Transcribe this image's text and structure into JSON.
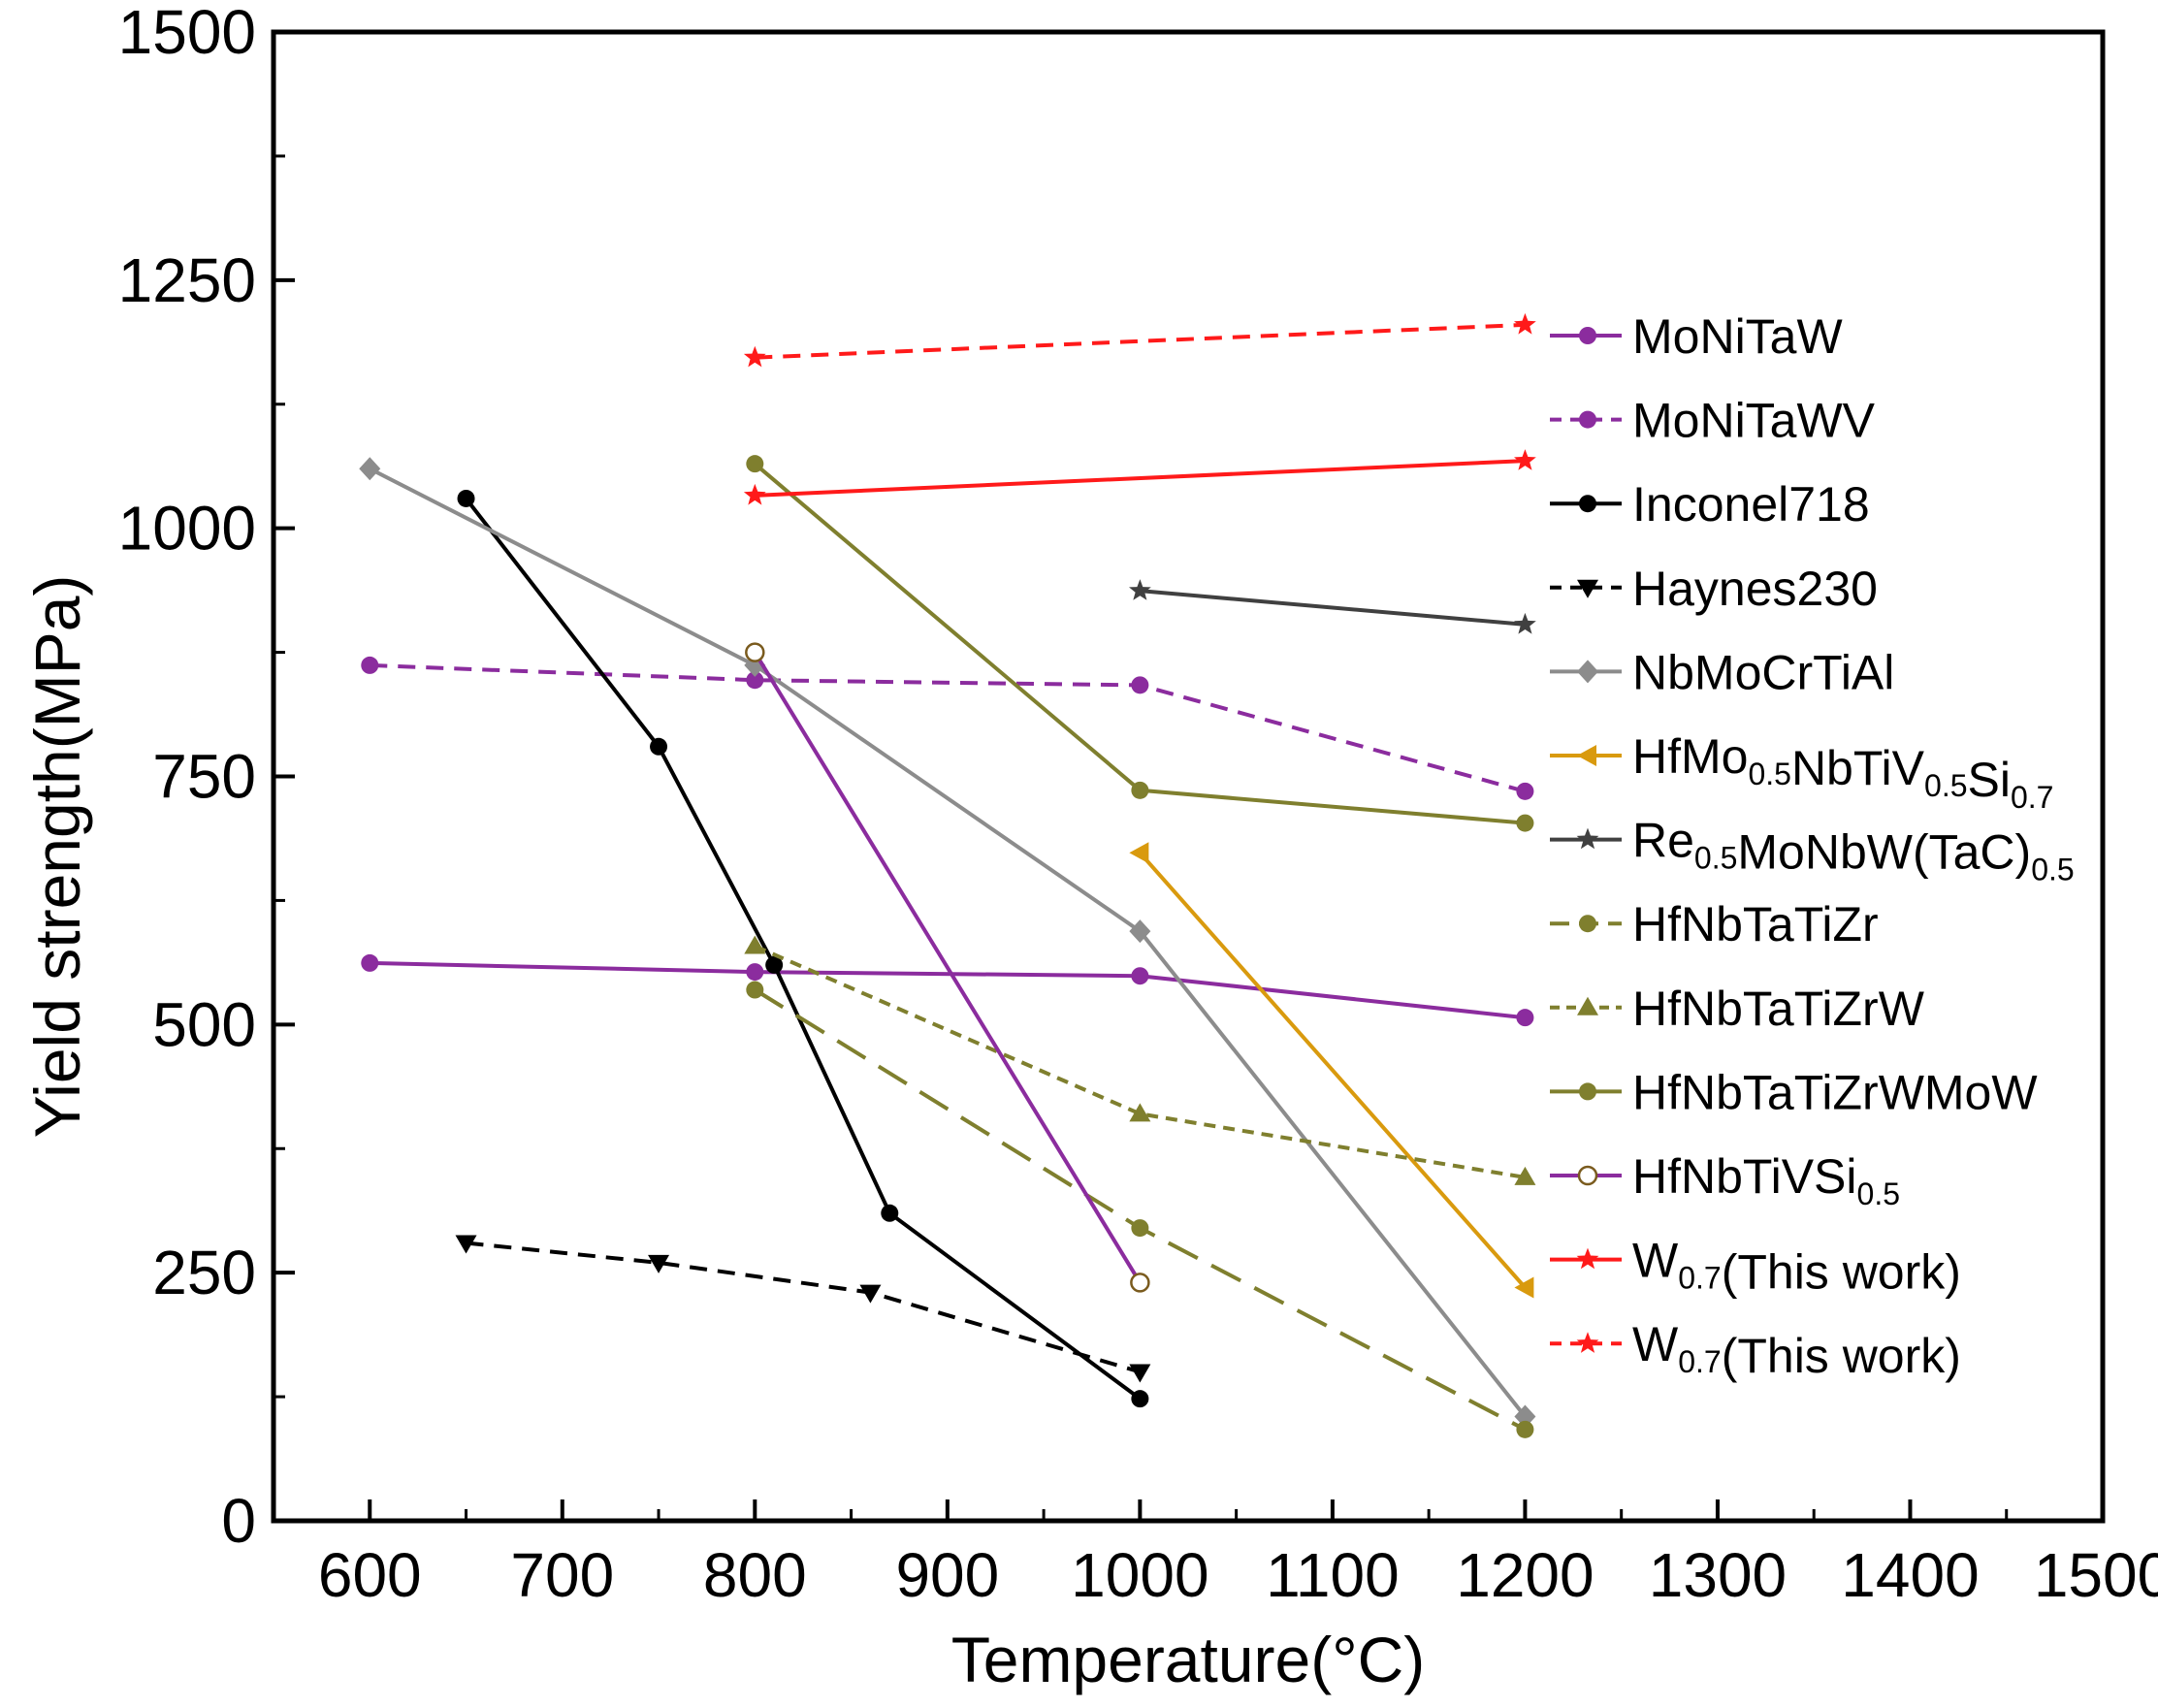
{
  "chart_data": {
    "type": "line",
    "title": "",
    "xlabel": "Temperature(°C)",
    "ylabel": "Yield strength(MPa)",
    "xlim": [
      550,
      1500
    ],
    "ylim": [
      0,
      1500
    ],
    "xticks": [
      600,
      700,
      800,
      900,
      1000,
      1100,
      1200,
      1300,
      1400,
      1500
    ],
    "yticks": [
      0,
      250,
      500,
      750,
      1000,
      1250,
      1500
    ],
    "grid": false,
    "legend_position": "right",
    "series": [
      {
        "name": "MoNiTaW",
        "label_parts": [
          [
            "MoNiTaW",
            ""
          ]
        ],
        "color": "#8b2c9e",
        "dash": "solid",
        "marker": "circle",
        "x": [
          600,
          800,
          1000,
          1200
        ],
        "y": [
          562,
          553,
          549,
          507
        ]
      },
      {
        "name": "MoNiTaWV",
        "label_parts": [
          [
            "MoNiTaWV",
            ""
          ]
        ],
        "color": "#8b2c9e",
        "dash": "dash",
        "marker": "circle",
        "x": [
          600,
          800,
          1000,
          1200
        ],
        "y": [
          862,
          847,
          842,
          735
        ]
      },
      {
        "name": "Inconel718",
        "label_parts": [
          [
            "Inconel718",
            ""
          ]
        ],
        "color": "#000000",
        "dash": "solid",
        "marker": "circle",
        "x": [
          650,
          750,
          810,
          870,
          1000
        ],
        "y": [
          1030,
          780,
          560,
          310,
          123
        ]
      },
      {
        "name": "Haynes230",
        "label_parts": [
          [
            "Haynes230",
            ""
          ]
        ],
        "color": "#000000",
        "dash": "dash",
        "marker": "triangle-down",
        "x": [
          650,
          750,
          860,
          1000
        ],
        "y": [
          280,
          260,
          230,
          150
        ]
      },
      {
        "name": "NbMoCrTiAl",
        "label_parts": [
          [
            "NbMoCrTiAl",
            ""
          ]
        ],
        "color": "#8c8c8c",
        "dash": "solid",
        "marker": "diamond",
        "x": [
          600,
          800,
          1000,
          1200
        ],
        "y": [
          1060,
          862,
          594,
          105
        ]
      },
      {
        "name": "HfMo0.5NbTiV0.5Si0.7",
        "label_parts": [
          [
            "HfMo",
            ""
          ],
          [
            "0.5",
            "sub"
          ],
          [
            "NbTiV",
            ""
          ],
          [
            "0.5",
            "sub"
          ],
          [
            "Si",
            ""
          ],
          [
            "0.7",
            "sub"
          ]
        ],
        "color": "#d99a0e",
        "dash": "solid",
        "marker": "triangle-left",
        "x": [
          1000,
          1200
        ],
        "y": [
          673,
          235
        ]
      },
      {
        "name": "Re0.5MoNbW(TaC)0.5",
        "label_parts": [
          [
            "Re",
            ""
          ],
          [
            "0.5",
            "sub"
          ],
          [
            "MoNbW(TaC)",
            ""
          ],
          [
            "0.5",
            "sub"
          ]
        ],
        "color": "#404040",
        "dash": "solid",
        "marker": "star",
        "x": [
          1000,
          1200
        ],
        "y": [
          937,
          903
        ]
      },
      {
        "name": "HfNbTaTiZr",
        "label_parts": [
          [
            "HfNbTaTiZr",
            ""
          ]
        ],
        "color": "#7f7f2e",
        "dash": "longdash",
        "marker": "circle",
        "x": [
          800,
          1000,
          1200
        ],
        "y": [
          535,
          295,
          92
        ]
      },
      {
        "name": "HfNbTaTiZrW",
        "label_parts": [
          [
            "HfNbTaTiZrW",
            ""
          ]
        ],
        "color": "#7f7f2e",
        "dash": "shortdash",
        "marker": "triangle-up",
        "x": [
          800,
          1000,
          1200
        ],
        "y": [
          579,
          410,
          346
        ]
      },
      {
        "name": "HfNbTaTiZrWMoW",
        "label_parts": [
          [
            "HfNbTaTiZrWMoW",
            ""
          ]
        ],
        "color": "#7f7f2e",
        "dash": "solid",
        "marker": "circle",
        "x": [
          800,
          1000,
          1200
        ],
        "y": [
          1065,
          736,
          703
        ]
      },
      {
        "name": "HfNbTiVSi0.5",
        "label_parts": [
          [
            "HfNbTiVSi",
            ""
          ],
          [
            "0.5",
            "sub"
          ]
        ],
        "color": "#8b2c9e",
        "dash": "solid",
        "marker": "open-circle",
        "x": [
          800,
          1000
        ],
        "y": [
          875,
          240
        ]
      },
      {
        "name": "W0.7(This work)",
        "label_parts": [
          [
            "W",
            ""
          ],
          [
            "0.7",
            "sub"
          ],
          [
            "(This work)",
            ""
          ]
        ],
        "color": "#ff1a1a",
        "dash": "solid",
        "marker": "star",
        "x": [
          800,
          1200
        ],
        "y": [
          1033,
          1068
        ]
      },
      {
        "name": "W0.7(This work)",
        "label_parts": [
          [
            "W",
            ""
          ],
          [
            "0.7",
            "sub"
          ],
          [
            "(This work)",
            ""
          ]
        ],
        "color": "#ff1a1a",
        "dash": "dash",
        "marker": "star",
        "x": [
          800,
          1200
        ],
        "y": [
          1172,
          1205
        ]
      }
    ]
  }
}
